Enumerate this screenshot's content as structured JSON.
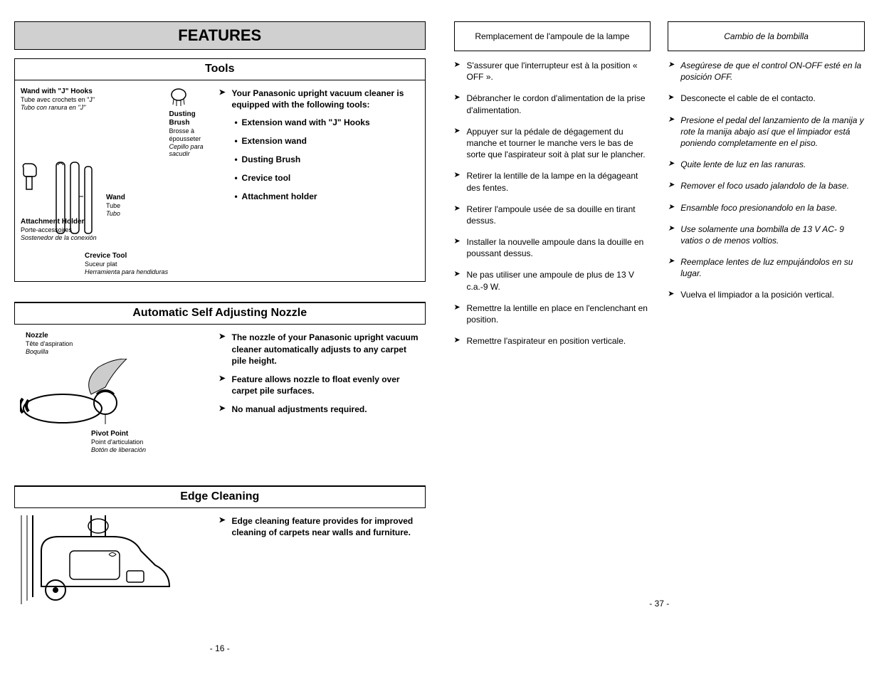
{
  "left": {
    "features_heading": "FEATURES",
    "tools": {
      "title": "Tools",
      "intro": "Your Panasonic upright vacuum cleaner is equipped with the following tools:",
      "bullets": [
        "Extension wand with \"J\" Hooks",
        "Extension wand",
        "Dusting Brush",
        "Crevice tool",
        "Attachment holder"
      ],
      "labels": {
        "wand_j_en": "Wand with \"J\" Hooks",
        "wand_j_fr": "Tube avec crochets en \"J\"",
        "wand_j_es": "Tubo con ranura en \"J\"",
        "dusting_en": "Dusting Brush",
        "dusting_fr": "Brosse à épousseter",
        "dusting_es": "Cepillo para sacudir",
        "wand_en": "Wand",
        "wand_fr": "Tube",
        "wand_es": "Tubo",
        "attach_en": "Attachment Holder",
        "attach_fr": "Porte-accessoires",
        "attach_es": "Sostenedor de la conexión",
        "crevice_en": "Crevice Tool",
        "crevice_fr": "Suceur plat",
        "crevice_es": "Herramienta  para hendiduras"
      }
    },
    "nozzle": {
      "title": "Automatic Self Adjusting Nozzle",
      "items": [
        "The nozzle of your Panasonic upright vacuum cleaner automatically adjusts to any carpet pile height.",
        "Feature allows nozzle to float evenly over carpet pile surfaces.",
        "No manual adjustments required."
      ],
      "labels": {
        "nozzle_en": "Nozzle",
        "nozzle_fr": "Tête d'aspiration",
        "nozzle_es": "Boquilla",
        "pivot_en": "Pivot Point",
        "pivot_fr": "Point d'articulation",
        "pivot_es": "Botón de liberación"
      }
    },
    "edge": {
      "title": "Edge Cleaning",
      "items": [
        "Edge cleaning feature provides for improved cleaning of carpets near walls and furniture."
      ]
    },
    "page_num": "- 16 -"
  },
  "right": {
    "french": {
      "header": "Remplacement de l'ampoule de la lampe",
      "items": [
        "S'assurer que l'interrupteur est à la position « OFF ».",
        "Débrancher le cordon d'alimentation de la prise d'alimentation.",
        "Appuyer sur la pédale de dégagement du manche et tourner le manche vers le bas de sorte que l'aspirateur soit à plat sur le plancher.",
        "Retirer la lentille de la lampe en la dégageant des fentes.",
        "Retirer l'ampoule usée de sa douille en tirant dessus.",
        "Installer la nouvelle ampoule dans la douille en poussant dessus.",
        "Ne pas utiliser une ampoule de plus de 13 V c.a.-9 W.",
        "Remettre la lentille en place en l'enclenchant en position.",
        "Remettre l'aspirateur en position verticale."
      ]
    },
    "spanish": {
      "header": "Cambio de la bombilla",
      "items": [
        {
          "text": "Asegúrese de que el control ON-OFF esté en la posición OFF.",
          "italic": true
        },
        {
          "text": "Desconecte el cable de el contacto.",
          "italic": false
        },
        {
          "text": "Presione el pedal del lanzamiento de la manija y rote la manija abajo así que el limpiador está poniendo completamente en el piso.",
          "italic": true
        },
        {
          "text": "Quite lente de luz en las ranuras.",
          "italic": true
        },
        {
          "text": "Remover el foco usado jalandolo de la base.",
          "italic": true
        },
        {
          "text": "Ensamble foco presionandolo en la base.",
          "italic": true
        },
        {
          "text": "Use solamente una bombilla de 13 V AC- 9 vatios o de menos voltios.",
          "italic": true
        },
        {
          "text": "Reemplace lentes de luz empujándolos en su lugar.",
          "italic": true
        },
        {
          "text": "Vuelva el limpiador a la posición vertical.",
          "italic": false
        }
      ]
    },
    "page_num": "- 37 -"
  }
}
